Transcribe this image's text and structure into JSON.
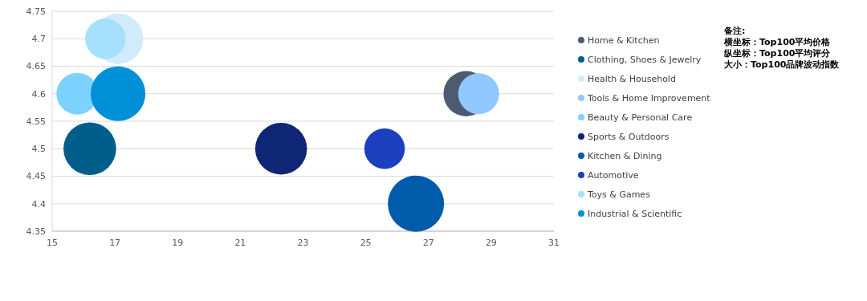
{
  "chart_data": {
    "type": "bubble",
    "xlim": [
      15,
      31
    ],
    "xticks": [
      15,
      17,
      19,
      21,
      23,
      25,
      27,
      29,
      31
    ],
    "ylim": [
      4.35,
      4.75
    ],
    "yticks": [
      4.35,
      4.4,
      4.45,
      4.5,
      4.55,
      4.6,
      4.65,
      4.7,
      4.75
    ],
    "grid": "y",
    "legend": "right",
    "marker": "circle",
    "annotations": [
      "备注:",
      "横坐标：Top100平均价格",
      "纵坐标：Top100平均评分",
      "大小：Top100品牌波动指数"
    ],
    "series": [
      {
        "name": "Home & Kitchen",
        "color": "#4d5b70",
        "x": [
          28.2
        ],
        "values": [
          4.6
        ],
        "sizes": [
          0.65
        ]
      },
      {
        "name": "Clothing, Shoes & Jewelry",
        "color": "#005f8a",
        "x": [
          16.2
        ],
        "values": [
          4.5
        ],
        "sizes": [
          0.88
        ]
      },
      {
        "name": "Health & Household",
        "color": "#d0ecfc",
        "x": [
          17.1
        ],
        "values": [
          4.7
        ],
        "sizes": [
          0.81
        ]
      },
      {
        "name": "Tools & Home Improvement",
        "color": "#90c8ff",
        "x": [
          28.6
        ],
        "values": [
          4.6
        ],
        "sizes": [
          0.53
        ]
      },
      {
        "name": "Beauty & Personal Care",
        "color": "#7dd3ff",
        "x": [
          15.8
        ],
        "values": [
          4.6
        ],
        "sizes": [
          0.55
        ]
      },
      {
        "name": "Sports & Outdoors",
        "color": "#0f2677",
        "x": [
          22.3
        ],
        "values": [
          4.5
        ],
        "sizes": [
          0.85
        ]
      },
      {
        "name": "Kitchen & Dining",
        "color": "#005baa",
        "x": [
          26.6
        ],
        "values": [
          4.4
        ],
        "sizes": [
          1
        ]
      },
      {
        "name": "Automotive",
        "color": "#1a3fbf",
        "x": [
          25.6
        ],
        "values": [
          4.5
        ],
        "sizes": [
          0.52
        ]
      },
      {
        "name": "Toys & Games",
        "color": "#a6e0ff",
        "x": [
          16.7
        ],
        "values": [
          4.7
        ],
        "sizes": [
          0.52
        ]
      },
      {
        "name": "Industrial & Scientific",
        "color": "#0090d8",
        "x": [
          17.1
        ],
        "values": [
          4.6
        ],
        "sizes": [
          0.95
        ]
      }
    ]
  }
}
